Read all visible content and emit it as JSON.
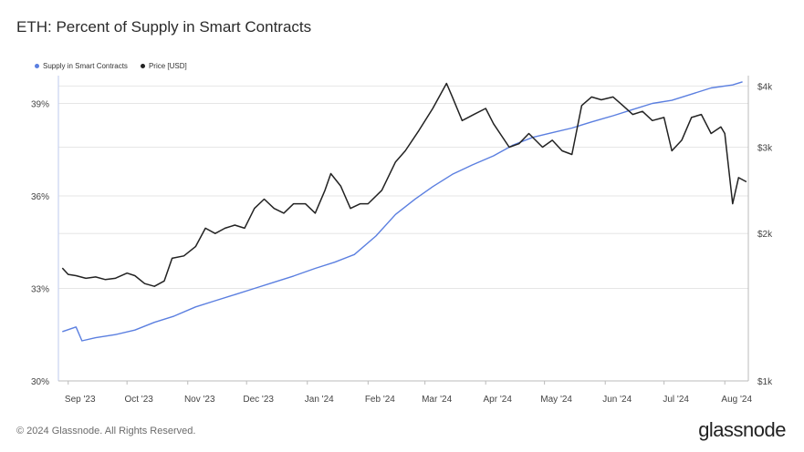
{
  "title": "ETH: Percent of Supply in Smart Contracts",
  "footer": "© 2024 Glassnode. All Rights Reserved.",
  "brand": "glassnode",
  "colors": {
    "supply": "#5b7fe0",
    "price": "#222222",
    "grid": "#e6e6e6",
    "axis": "#bbbbbb"
  },
  "chart_data": {
    "type": "line",
    "x_labels": [
      "Sep '23",
      "Oct '23",
      "Nov '23",
      "Dec '23",
      "Jan '24",
      "Feb '24",
      "Mar '24",
      "Apr '24",
      "May '24",
      "Jun '24",
      "Jul '24",
      "Aug '24"
    ],
    "y_left": {
      "ticks": [
        "30%",
        "33%",
        "36%",
        "39%"
      ],
      "range": [
        30,
        39.9
      ]
    },
    "y_right": {
      "ticks": [
        "$1k",
        "$2k",
        "$3k",
        "$4k"
      ],
      "range": [
        1000,
        4200
      ],
      "scale": "log"
    },
    "legend_position": "top-left",
    "grid": true,
    "series": [
      {
        "name": "Supply in Smart Contracts",
        "axis": "left",
        "color": "#5b7fe0",
        "points": [
          [
            "2023-08-29",
            31.6
          ],
          [
            "2023-09-05",
            31.75
          ],
          [
            "2023-09-08",
            31.3
          ],
          [
            "2023-09-15",
            31.4
          ],
          [
            "2023-09-25",
            31.5
          ],
          [
            "2023-10-05",
            31.65
          ],
          [
            "2023-10-15",
            31.9
          ],
          [
            "2023-10-25",
            32.1
          ],
          [
            "2023-11-05",
            32.4
          ],
          [
            "2023-11-15",
            32.6
          ],
          [
            "2023-11-25",
            32.8
          ],
          [
            "2023-12-05",
            33.0
          ],
          [
            "2023-12-15",
            33.2
          ],
          [
            "2023-12-25",
            33.4
          ],
          [
            "2024-01-05",
            33.65
          ],
          [
            "2024-01-15",
            33.85
          ],
          [
            "2024-01-25",
            34.1
          ],
          [
            "2024-02-05",
            34.7
          ],
          [
            "2024-02-15",
            35.4
          ],
          [
            "2024-02-25",
            35.9
          ],
          [
            "2024-03-05",
            36.3
          ],
          [
            "2024-03-15",
            36.7
          ],
          [
            "2024-03-25",
            37.0
          ],
          [
            "2024-04-05",
            37.3
          ],
          [
            "2024-04-15",
            37.65
          ],
          [
            "2024-04-25",
            37.9
          ],
          [
            "2024-05-05",
            38.05
          ],
          [
            "2024-05-15",
            38.2
          ],
          [
            "2024-05-25",
            38.4
          ],
          [
            "2024-06-05",
            38.6
          ],
          [
            "2024-06-15",
            38.8
          ],
          [
            "2024-06-25",
            39.0
          ],
          [
            "2024-07-05",
            39.1
          ],
          [
            "2024-07-15",
            39.3
          ],
          [
            "2024-07-25",
            39.5
          ],
          [
            "2024-08-05",
            39.6
          ],
          [
            "2024-08-10",
            39.7
          ]
        ]
      },
      {
        "name": "Price [USD]",
        "axis": "right",
        "color": "#222222",
        "points": [
          [
            "2023-08-29",
            1700
          ],
          [
            "2023-09-01",
            1650
          ],
          [
            "2023-09-05",
            1640
          ],
          [
            "2023-09-10",
            1620
          ],
          [
            "2023-09-15",
            1630
          ],
          [
            "2023-09-20",
            1610
          ],
          [
            "2023-09-25",
            1620
          ],
          [
            "2023-10-01",
            1660
          ],
          [
            "2023-10-05",
            1640
          ],
          [
            "2023-10-10",
            1580
          ],
          [
            "2023-10-15",
            1560
          ],
          [
            "2023-10-20",
            1600
          ],
          [
            "2023-10-24",
            1780
          ],
          [
            "2023-10-30",
            1800
          ],
          [
            "2023-11-05",
            1880
          ],
          [
            "2023-11-10",
            2050
          ],
          [
            "2023-11-15",
            2000
          ],
          [
            "2023-11-20",
            2050
          ],
          [
            "2023-11-25",
            2080
          ],
          [
            "2023-11-30",
            2050
          ],
          [
            "2023-12-05",
            2250
          ],
          [
            "2023-12-10",
            2350
          ],
          [
            "2023-12-15",
            2250
          ],
          [
            "2023-12-20",
            2200
          ],
          [
            "2023-12-25",
            2300
          ],
          [
            "2023-12-31",
            2300
          ],
          [
            "2024-01-05",
            2200
          ],
          [
            "2024-01-10",
            2450
          ],
          [
            "2024-01-13",
            2650
          ],
          [
            "2024-01-18",
            2500
          ],
          [
            "2024-01-23",
            2250
          ],
          [
            "2024-01-28",
            2300
          ],
          [
            "2024-02-01",
            2300
          ],
          [
            "2024-02-08",
            2450
          ],
          [
            "2024-02-15",
            2800
          ],
          [
            "2024-02-20",
            2950
          ],
          [
            "2024-02-27",
            3250
          ],
          [
            "2024-03-05",
            3600
          ],
          [
            "2024-03-12",
            4050
          ],
          [
            "2024-03-15",
            3800
          ],
          [
            "2024-03-20",
            3400
          ],
          [
            "2024-03-26",
            3500
          ],
          [
            "2024-04-01",
            3600
          ],
          [
            "2024-04-05",
            3350
          ],
          [
            "2024-04-13",
            3000
          ],
          [
            "2024-04-18",
            3050
          ],
          [
            "2024-04-23",
            3200
          ],
          [
            "2024-04-30",
            3000
          ],
          [
            "2024-05-05",
            3100
          ],
          [
            "2024-05-10",
            2950
          ],
          [
            "2024-05-15",
            2900
          ],
          [
            "2024-05-20",
            3650
          ],
          [
            "2024-05-25",
            3800
          ],
          [
            "2024-05-30",
            3750
          ],
          [
            "2024-06-05",
            3800
          ],
          [
            "2024-06-10",
            3650
          ],
          [
            "2024-06-15",
            3500
          ],
          [
            "2024-06-20",
            3550
          ],
          [
            "2024-06-25",
            3400
          ],
          [
            "2024-07-01",
            3450
          ],
          [
            "2024-07-05",
            2950
          ],
          [
            "2024-07-10",
            3100
          ],
          [
            "2024-07-15",
            3450
          ],
          [
            "2024-07-20",
            3500
          ],
          [
            "2024-07-25",
            3200
          ],
          [
            "2024-07-30",
            3300
          ],
          [
            "2024-08-01",
            3200
          ],
          [
            "2024-08-05",
            2300
          ],
          [
            "2024-08-08",
            2600
          ],
          [
            "2024-08-12",
            2550
          ]
        ]
      }
    ]
  }
}
